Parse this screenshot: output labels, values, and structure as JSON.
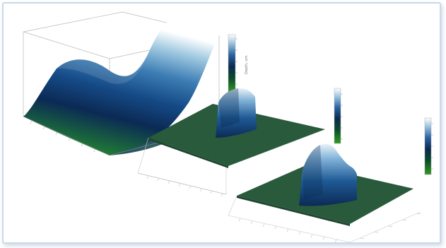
{
  "figure": {
    "colorbar_label_1": "Depth, um",
    "colorbar_label_2": "",
    "colorbar_label_3": "",
    "colormap": [
      "#2f9b22",
      "#0b4a2b",
      "#0a2a52",
      "#123d7a",
      "#3f7ab0",
      "#9cc4de",
      "#ffffff"
    ],
    "floor_color": "#2a5a3c"
  }
}
